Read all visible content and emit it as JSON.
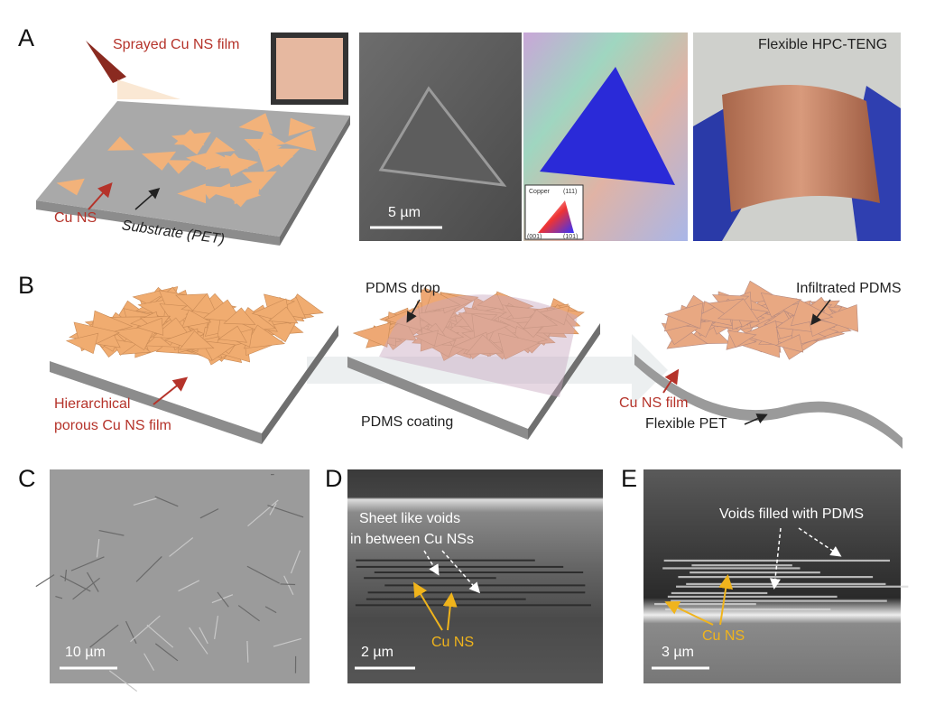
{
  "panel_a": {
    "letter": "A",
    "spray_label": "Sprayed Cu NS film",
    "cu_ns": "Cu NS",
    "substrate": "Substrate (PET)",
    "scale_bar": "5 µm",
    "legend_title": "Copper",
    "legend_111": "(111)",
    "legend_001": "(001)",
    "legend_101": "(101)",
    "photo_label": "Flexible HPC-TENG"
  },
  "panel_b": {
    "letter": "B",
    "film_label": [
      "Hierarchical",
      "porous Cu NS film"
    ],
    "pdms_drop": "PDMS drop",
    "pdms_coating": "PDMS coating",
    "infiltrated": "Infiltrated PDMS",
    "cu_ns_film": "Cu NS film",
    "flexible_pet": "Flexible PET"
  },
  "panel_c": {
    "letter": "C",
    "scale_bar": "10 µm"
  },
  "panel_d": {
    "letter": "D",
    "voids_label": [
      "Sheet like voids",
      "in between Cu NSs"
    ],
    "cu_ns": "Cu NS",
    "scale_bar": "2 µm"
  },
  "panel_e": {
    "letter": "E",
    "voids_label": "Voids filled with PDMS",
    "cu_ns": "Cu NS",
    "scale_bar": "3 µm"
  }
}
